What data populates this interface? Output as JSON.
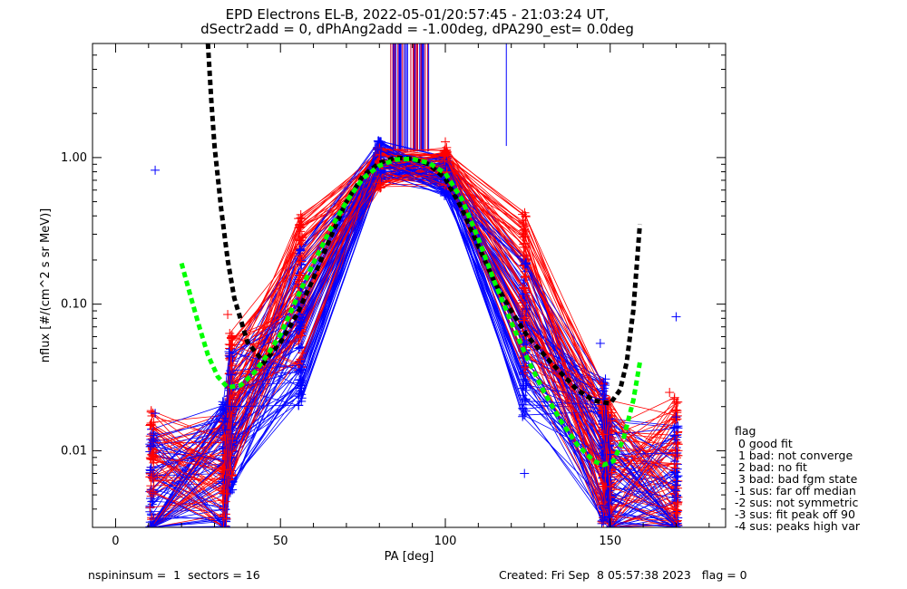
{
  "chart_data": {
    "type": "scatter",
    "title": "EPD Electrons EL-B, 2022-05-01/20:57:45 - 21:03:24 UT,",
    "subtitle": "dSectr2add = 0, dPhAng2add = -1.00deg, dPA290_est=   0.0deg",
    "xlabel": "PA [deg]",
    "ylabel": "nflux [#/(cm^2 s sr MeV)]",
    "xlim": [
      -7,
      185
    ],
    "ylim": [
      0.003,
      6.0
    ],
    "yscale": "log",
    "x_ticks": [
      0,
      50,
      100,
      150
    ],
    "x_tick_labels": [
      "0",
      "50",
      "100",
      "150"
    ],
    "y_ticks": [
      0.01,
      0.1,
      1.0
    ],
    "y_tick_labels": [
      "0.01",
      "0.10",
      "1.00"
    ],
    "pa_bins": [
      11,
      33,
      35,
      56,
      80,
      100,
      124,
      148,
      150,
      170
    ],
    "series": [
      {
        "color": "#ff0000",
        "profile": [
          0.006,
          0.006,
          0.02,
          0.12,
          0.85,
          0.85,
          0.12,
          0.01,
          0.007,
          0.0075
        ]
      },
      {
        "color": "#0000ff",
        "profile": [
          0.0045,
          0.007,
          0.016,
          0.07,
          0.95,
          0.75,
          0.06,
          0.01,
          0.006,
          0.005
        ]
      },
      {
        "color": "#000000",
        "x": [
          28,
          29,
          30,
          32,
          34,
          36,
          40,
          45,
          50,
          55,
          60,
          65,
          70,
          75,
          80,
          85,
          90,
          95,
          100,
          105,
          110,
          115,
          120,
          125,
          130,
          135,
          140,
          145,
          150,
          153,
          155,
          157,
          159
        ],
        "y": [
          6.0,
          2.5,
          1.2,
          0.45,
          0.2,
          0.11,
          0.055,
          0.04,
          0.055,
          0.085,
          0.15,
          0.28,
          0.5,
          0.75,
          0.92,
          1.0,
          0.98,
          0.9,
          0.72,
          0.45,
          0.25,
          0.14,
          0.09,
          0.06,
          0.045,
          0.034,
          0.026,
          0.022,
          0.021,
          0.026,
          0.04,
          0.09,
          0.35
        ]
      },
      {
        "color": "#00ff00",
        "x": [
          20,
          22,
          25,
          28,
          31,
          34,
          38,
          42,
          46,
          50,
          55,
          60,
          65,
          70,
          75,
          80,
          85,
          90,
          95,
          100,
          105,
          110,
          115,
          120,
          125,
          130,
          135,
          140,
          145,
          148,
          151,
          154,
          157,
          159
        ],
        "y": [
          0.19,
          0.13,
          0.075,
          0.045,
          0.032,
          0.027,
          0.028,
          0.034,
          0.045,
          0.062,
          0.11,
          0.19,
          0.32,
          0.5,
          0.72,
          0.88,
          0.97,
          0.98,
          0.92,
          0.78,
          0.52,
          0.28,
          0.14,
          0.075,
          0.042,
          0.025,
          0.016,
          0.011,
          0.0085,
          0.008,
          0.0085,
          0.012,
          0.022,
          0.04
        ]
      }
    ],
    "outliers": [
      {
        "x": 12,
        "y": 0.82,
        "color": "#0000ff"
      },
      {
        "x": 170,
        "y": 0.082,
        "color": "#0000ff"
      },
      {
        "x": 12,
        "y": 0.018,
        "color": "#0000ff"
      },
      {
        "x": 34,
        "y": 0.085,
        "color": "#ff0000"
      },
      {
        "x": 168,
        "y": 0.025,
        "color": "#ff0000"
      },
      {
        "x": 170,
        "y": 0.017,
        "color": "#0000ff"
      },
      {
        "x": 147,
        "y": 0.054,
        "color": "#0000ff"
      },
      {
        "x": 56,
        "y": 0.35,
        "color": "#ff0000"
      },
      {
        "x": 100,
        "y": 1.28,
        "color": "#ff0000"
      },
      {
        "x": 124,
        "y": 0.007,
        "color": "#0000ff"
      }
    ],
    "spikes": {
      "x_range": [
        82,
        95
      ],
      "y_from": 1.1,
      "y_to": 6.0,
      "extra_x": 118.5,
      "extra_y_from": 1.2
    },
    "legend": {
      "placement": "right",
      "title": "flag",
      "entries": [
        " 0 good fit",
        " 1 bad: not converge",
        " 2 bad: no fit",
        " 3 bad: bad fgm state",
        "-1 sus: far off median",
        "-2 sus: not symmetric",
        "-3 sus: fit peak off 90",
        "-4 sus: peaks high var"
      ]
    }
  },
  "footer": {
    "left": "nspininsum =  1  sectors = 16",
    "right": "Created: Fri Sep  8 05:57:38 2023   flag = 0"
  }
}
